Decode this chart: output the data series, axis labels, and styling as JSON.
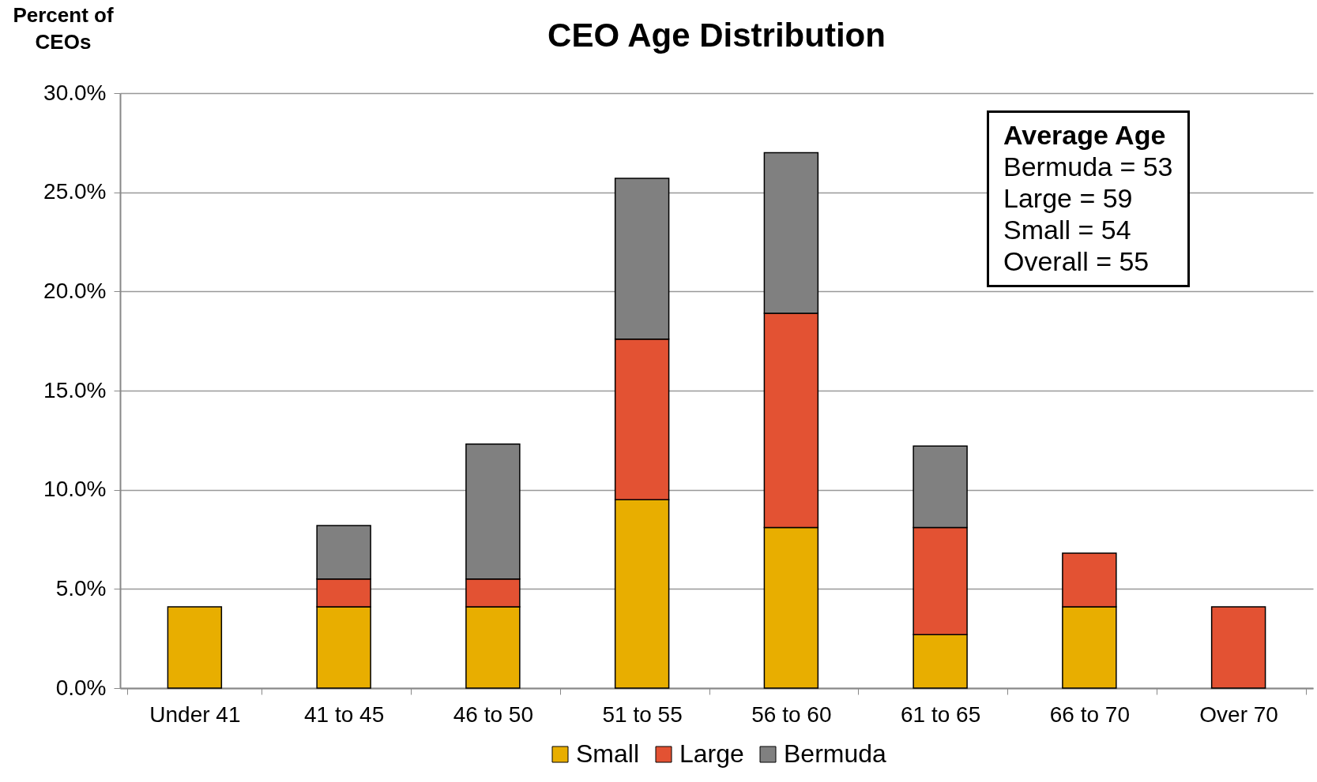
{
  "chart_data": {
    "type": "bar",
    "title": "CEO Age Distribution",
    "ylabel": "Percent of CEOs",
    "stacked": true,
    "categories": [
      "Under 41",
      "41 to 45",
      "46 to 50",
      "51 to 55",
      "56 to 60",
      "61 to 65",
      "66 to 70",
      "Over 70"
    ],
    "series": [
      {
        "name": "Small",
        "color": "#e8ae00",
        "values": [
          4.1,
          4.1,
          4.1,
          9.5,
          8.1,
          2.7,
          4.1,
          null
        ]
      },
      {
        "name": "Large",
        "color": "#e35233",
        "values": [
          null,
          1.4,
          1.4,
          8.1,
          10.8,
          5.4,
          2.7,
          4.1
        ]
      },
      {
        "name": "Bermuda",
        "color": "#808080",
        "values": [
          null,
          2.7,
          6.8,
          8.1,
          8.1,
          4.1,
          null,
          null
        ]
      }
    ],
    "ylim": [
      0,
      30
    ],
    "yticks": [
      {
        "value": 0,
        "label": "0.0%"
      },
      {
        "value": 5,
        "label": "5.0%"
      },
      {
        "value": 10,
        "label": "10.0%"
      },
      {
        "value": 15,
        "label": "15.0%"
      },
      {
        "value": 20,
        "label": "20.0%"
      },
      {
        "value": 25,
        "label": "25.0%"
      },
      {
        "value": 30,
        "label": "30.0%"
      }
    ],
    "grid": "y",
    "legend": "bottom",
    "annotations": [
      "Average Age",
      "Bermuda = 53",
      "Large = 59",
      "Small = 54",
      "Overall = 55"
    ]
  }
}
